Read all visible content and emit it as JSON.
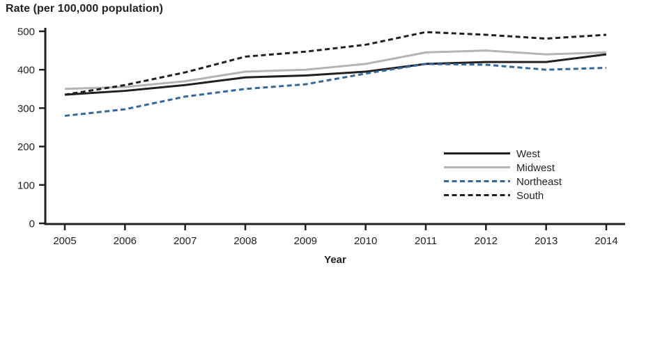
{
  "chart_data": {
    "type": "line",
    "title": "Rate (per 100,000 population)",
    "xlabel": "Year",
    "ylabel": "",
    "categories": [
      "2005",
      "2006",
      "2007",
      "2008",
      "2009",
      "2010",
      "2011",
      "2012",
      "2013",
      "2014"
    ],
    "series": [
      {
        "name": "West",
        "color": "#231f20",
        "dash": null,
        "values": [
          335,
          345,
          360,
          380,
          385,
          395,
          415,
          420,
          420,
          440
        ]
      },
      {
        "name": "Midwest",
        "color": "#b1b3b6",
        "dash": null,
        "values": [
          350,
          355,
          370,
          395,
          400,
          415,
          445,
          450,
          440,
          445
        ]
      },
      {
        "name": "Northeast",
        "color": "#32689c",
        "dash": "7 4.5",
        "values": [
          280,
          297,
          330,
          350,
          362,
          390,
          415,
          413,
          400,
          405
        ]
      },
      {
        "name": "South",
        "color": "#231f20",
        "dash": "7 4.5",
        "values": [
          335,
          360,
          393,
          434,
          447,
          465,
          498,
          491,
          481,
          491
        ]
      }
    ],
    "ylim": [
      0,
      500
    ],
    "yticks": [
      0,
      100,
      200,
      300,
      400,
      500
    ],
    "grid": false,
    "legend_position": "center-right",
    "axis_color": "#231f20"
  }
}
